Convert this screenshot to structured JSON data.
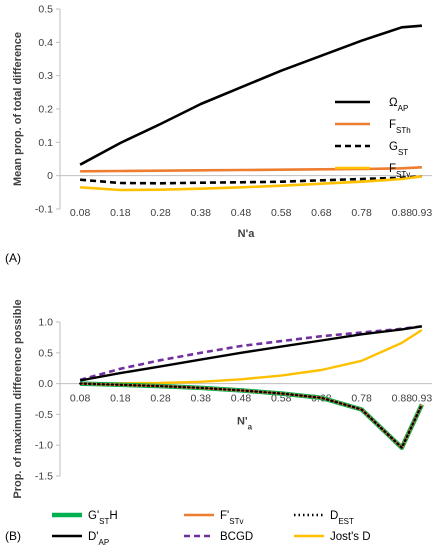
{
  "chart_data": [
    {
      "panel": "(A)",
      "type": "line",
      "xlabel": "N'a",
      "ylabel": "Mean prop. of total difference",
      "x": [
        0.08,
        0.18,
        0.28,
        0.38,
        0.48,
        0.58,
        0.68,
        0.78,
        0.88,
        0.93
      ],
      "ylim": [
        -0.1,
        0.5
      ],
      "yticks": [
        "-0.1",
        "0",
        "0.1",
        "0.2",
        "0.3",
        "0.4",
        "0.5"
      ],
      "grid": false,
      "legend_position": "right",
      "series": [
        {
          "name": "ΩAP",
          "label_main": "Ω",
          "label_sub": "AP",
          "color": "#000000",
          "dash": "solid",
          "values": [
            0.033,
            0.098,
            0.155,
            0.215,
            0.265,
            0.315,
            0.36,
            0.405,
            0.445,
            0.45
          ]
        },
        {
          "name": "FSTh",
          "label_main": "F",
          "label_sub": "STh",
          "color": "#ED7D31",
          "dash": "solid",
          "values": [
            0.013,
            0.014,
            0.015,
            0.016,
            0.017,
            0.018,
            0.019,
            0.02,
            0.022,
            0.025
          ]
        },
        {
          "name": "GST",
          "label_main": "G",
          "label_sub": "ST",
          "color": "#000000",
          "dash": "dashed",
          "values": [
            -0.012,
            -0.022,
            -0.023,
            -0.021,
            -0.02,
            -0.018,
            -0.014,
            -0.01,
            -0.006,
            -0.002
          ]
        },
        {
          "name": "FSTv",
          "label_main": "F",
          "label_sub": "STv",
          "color": "#FFC000",
          "dash": "solid",
          "values": [
            -0.035,
            -0.043,
            -0.042,
            -0.039,
            -0.035,
            -0.03,
            -0.024,
            -0.018,
            -0.01,
            -0.002
          ]
        }
      ]
    },
    {
      "panel": "(B)",
      "type": "line",
      "xlabel_main": "N'",
      "xlabel_sub": "a",
      "ylabel": "Prop. of maximum difference possible",
      "x": [
        0.08,
        0.18,
        0.28,
        0.38,
        0.48,
        0.58,
        0.68,
        0.78,
        0.88,
        0.93
      ],
      "ylim": [
        -1.5,
        1.0
      ],
      "yticks": [
        "-1.5",
        "-1.0",
        "-0.5",
        "0.0",
        "0.5",
        "1.0"
      ],
      "grid": false,
      "legend_position": "bottom",
      "series": [
        {
          "name": "G'STH",
          "label_main": "G'",
          "label_sub": "ST",
          "label_tail": "H",
          "color": "#00B050",
          "dash": "solid",
          "values": [
            0.0,
            -0.02,
            -0.04,
            -0.07,
            -0.11,
            -0.16,
            -0.23,
            -0.42,
            -1.04,
            -0.34
          ]
        },
        {
          "name": "F'STv",
          "label_main": "F'",
          "label_sub": "STv",
          "label_tail": "",
          "color": "#ED7D31",
          "dash": "solid",
          "values": [
            0.0,
            -0.02,
            -0.04,
            -0.07,
            -0.11,
            -0.16,
            -0.23,
            -0.42,
            -1.04,
            -0.34
          ]
        },
        {
          "name": "DEST",
          "label_main": "D",
          "label_sub": "EST",
          "label_tail": "",
          "color": "#000000",
          "dash": "dotted",
          "values": [
            0.0,
            -0.02,
            -0.04,
            -0.07,
            -0.11,
            -0.16,
            -0.23,
            -0.42,
            -1.04,
            -0.34
          ]
        },
        {
          "name": "D'AP",
          "label_main": "D'",
          "label_sub": "AP",
          "label_tail": "",
          "color": "#000000",
          "dash": "solid",
          "values": [
            0.05,
            0.17,
            0.28,
            0.39,
            0.5,
            0.6,
            0.7,
            0.8,
            0.88,
            0.93
          ]
        },
        {
          "name": "BCGD",
          "label_main": "BCGD",
          "label_sub": "",
          "label_tail": "",
          "color": "#7030A0",
          "dash": "dashed",
          "values": [
            0.06,
            0.24,
            0.38,
            0.5,
            0.61,
            0.69,
            0.77,
            0.83,
            0.89,
            0.93
          ]
        },
        {
          "name": "Jost's D",
          "label_main": "Jost's D",
          "label_sub": "",
          "label_tail": "",
          "color": "#FFC000",
          "dash": "solid",
          "values": [
            0.0,
            0.005,
            0.01,
            0.03,
            0.07,
            0.13,
            0.22,
            0.37,
            0.66,
            0.87
          ]
        }
      ]
    }
  ]
}
